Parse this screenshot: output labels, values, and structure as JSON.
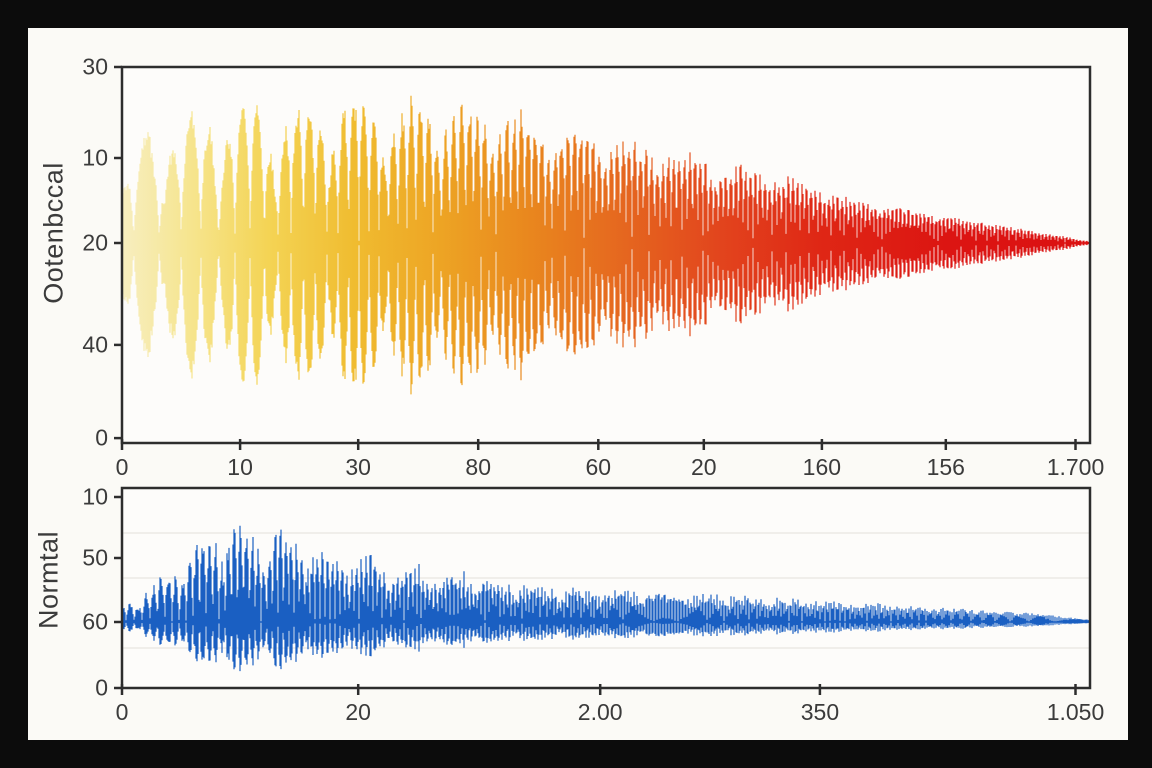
{
  "figure": {
    "frame_color": "#0c0c0c",
    "canvas_color": "#fbfaf6",
    "plot_bg_color": "#fdfcfa",
    "axis_color": "#2d2d2d",
    "text_color": "#3b3b3b",
    "grid_color": "#eceae5"
  },
  "chart_data": [
    {
      "type": "line",
      "subtype": "waveform",
      "title": "",
      "xlabel": "",
      "ylabel": "Ootenbccal",
      "legend": null,
      "grid": false,
      "x_tick_labels": [
        "0",
        "10",
        "30",
        "80",
        "60",
        "20",
        "160",
        "156",
        "1.700"
      ],
      "x_tick_pos": [
        0,
        0.122,
        0.244,
        0.368,
        0.492,
        0.601,
        0.723,
        0.851,
        0.985
      ],
      "y_tick_labels": [
        "30",
        "10",
        "20",
        "40",
        "0"
      ],
      "y_tick_pos": [
        0,
        0.242,
        0.468,
        0.739,
        0.987
      ],
      "center_rel_y": 0.468,
      "colors": {
        "gradient": [
          [
            0,
            "#f7eec0"
          ],
          [
            0.07,
            "#f6e58f"
          ],
          [
            0.15,
            "#f4d455"
          ],
          [
            0.24,
            "#f0bc30"
          ],
          [
            0.33,
            "#eda424"
          ],
          [
            0.42,
            "#e9871e"
          ],
          [
            0.52,
            "#e5661f"
          ],
          [
            0.62,
            "#e2441d"
          ],
          [
            0.72,
            "#df2715"
          ],
          [
            0.85,
            "#dc1512"
          ],
          [
            1,
            "#db1111"
          ]
        ],
        "center_line": [
          [
            0,
            "#e8821c"
          ],
          [
            0.35,
            "#e25b18"
          ],
          [
            0.6,
            "#de2f13"
          ],
          [
            1,
            "#dc1111"
          ]
        ]
      },
      "envelope": [
        [
          0,
          0.42
        ],
        [
          0.01,
          0.7
        ],
        [
          0.03,
          0.9
        ],
        [
          0.08,
          0.93
        ],
        [
          0.13,
          0.96
        ],
        [
          0.18,
          0.94
        ],
        [
          0.23,
          1.0
        ],
        [
          0.28,
          0.96
        ],
        [
          0.33,
          0.97
        ],
        [
          0.38,
          0.92
        ],
        [
          0.43,
          0.84
        ],
        [
          0.48,
          0.78
        ],
        [
          0.53,
          0.7
        ],
        [
          0.58,
          0.62
        ],
        [
          0.63,
          0.53
        ],
        [
          0.68,
          0.45
        ],
        [
          0.72,
          0.38
        ],
        [
          0.76,
          0.3
        ],
        [
          0.8,
          0.25
        ],
        [
          0.85,
          0.19
        ],
        [
          0.9,
          0.13
        ],
        [
          0.95,
          0.07
        ],
        [
          1,
          0.012
        ]
      ],
      "carrier": {
        "freq_start": 0.016,
        "freq_end": 0.15,
        "sharpness": 0.65
      },
      "beat": {
        "length": 55,
        "depth": 0.7,
        "fade": 0.75,
        "phase": 0.7
      },
      "noise": {
        "base": 0.6,
        "range": 0.4,
        "mix": 0.35
      },
      "amp_up": 1.0,
      "amp_down": 1.0,
      "seed": 12
    },
    {
      "type": "line",
      "subtype": "waveform",
      "title": "",
      "xlabel": "",
      "ylabel": "Normtal",
      "legend": null,
      "grid": true,
      "grid_rel_y": [
        0.225,
        0.45,
        0.8
      ],
      "x_tick_labels": [
        "0",
        "20",
        "2.00",
        "350",
        "1.050"
      ],
      "x_tick_pos": [
        0,
        0.244,
        0.494,
        0.721,
        0.985
      ],
      "y_tick_labels": [
        "10",
        "50",
        "60",
        "0"
      ],
      "y_tick_pos": [
        0.045,
        0.35,
        0.67,
        1.0
      ],
      "center_rel_y": 0.67,
      "colors": {
        "gradient": [
          [
            0,
            "#1a5fc2"
          ],
          [
            1,
            "#1a5fc2"
          ]
        ],
        "center_line": [
          [
            0,
            "#1557b8"
          ],
          [
            1,
            "#1557b8"
          ]
        ]
      },
      "envelope": [
        [
          0,
          0.16
        ],
        [
          0.02,
          0.28
        ],
        [
          0.05,
          0.5
        ],
        [
          0.08,
          0.78
        ],
        [
          0.1,
          0.95
        ],
        [
          0.12,
          1.0
        ],
        [
          0.14,
          0.8
        ],
        [
          0.16,
          0.95
        ],
        [
          0.19,
          0.78
        ],
        [
          0.22,
          0.65
        ],
        [
          0.26,
          0.6
        ],
        [
          0.3,
          0.53
        ],
        [
          0.35,
          0.47
        ],
        [
          0.4,
          0.4
        ],
        [
          0.46,
          0.34
        ],
        [
          0.52,
          0.3
        ],
        [
          0.6,
          0.26
        ],
        [
          0.68,
          0.22
        ],
        [
          0.76,
          0.18
        ],
        [
          0.84,
          0.14
        ],
        [
          0.92,
          0.1
        ],
        [
          0.97,
          0.06
        ],
        [
          1,
          0.025
        ]
      ],
      "carrier": {
        "freq_start": 0.06,
        "freq_end": 0.25,
        "sharpness": 0.8
      },
      "beat": {
        "length": 42,
        "depth": 0.55,
        "fade": 0.8,
        "phase": 1.9
      },
      "noise": {
        "base": 0.5,
        "range": 0.5,
        "mix": 0.6
      },
      "amp_up": 1.0,
      "amp_down": 0.51,
      "seed": 5
    }
  ]
}
